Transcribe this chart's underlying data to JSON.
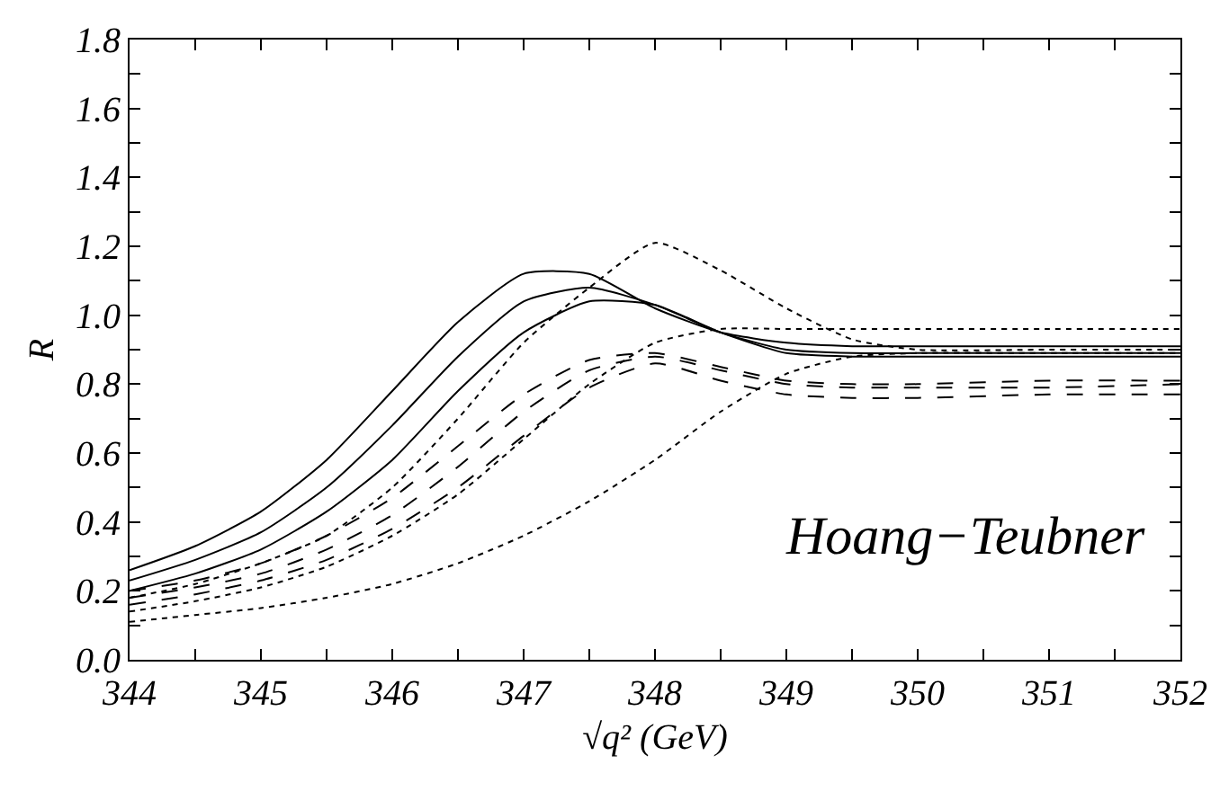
{
  "chart_data": {
    "type": "line",
    "xlabel": "√q² (GeV)",
    "ylabel": "R",
    "annotations": [
      "Hoang−Teubner"
    ],
    "x": [
      344,
      344.5,
      345,
      345.5,
      346,
      346.5,
      347,
      347.5,
      348,
      348.5,
      349,
      349.5,
      350,
      351,
      352
    ],
    "series": [
      {
        "color": "#000000",
        "line_style": "solid",
        "values": [
          0.26,
          0.33,
          0.43,
          0.58,
          0.78,
          0.98,
          1.12,
          1.12,
          1.02,
          0.95,
          0.92,
          0.91,
          0.91,
          0.91,
          0.91
        ]
      },
      {
        "color": "#000000",
        "line_style": "solid",
        "values": [
          0.23,
          0.29,
          0.37,
          0.5,
          0.68,
          0.88,
          1.04,
          1.08,
          1.03,
          0.95,
          0.9,
          0.89,
          0.89,
          0.89,
          0.89
        ]
      },
      {
        "color": "#000000",
        "line_style": "solid",
        "values": [
          0.2,
          0.25,
          0.32,
          0.43,
          0.58,
          0.78,
          0.95,
          1.04,
          1.03,
          0.95,
          0.89,
          0.88,
          0.88,
          0.88,
          0.88
        ]
      },
      {
        "color": "#000000",
        "line_style": "dashed",
        "values": [
          0.2,
          0.23,
          0.28,
          0.36,
          0.47,
          0.62,
          0.77,
          0.87,
          0.89,
          0.85,
          0.81,
          0.8,
          0.8,
          0.81,
          0.81
        ]
      },
      {
        "color": "#000000",
        "line_style": "dashed",
        "values": [
          0.18,
          0.21,
          0.25,
          0.32,
          0.42,
          0.56,
          0.72,
          0.84,
          0.88,
          0.84,
          0.8,
          0.79,
          0.79,
          0.79,
          0.8
        ]
      },
      {
        "color": "#000000",
        "line_style": "dashed",
        "values": [
          0.16,
          0.19,
          0.23,
          0.29,
          0.38,
          0.5,
          0.65,
          0.79,
          0.86,
          0.81,
          0.77,
          0.76,
          0.76,
          0.77,
          0.77
        ]
      },
      {
        "color": "#000000",
        "line_style": "dotted",
        "values": [
          0.18,
          0.22,
          0.28,
          0.36,
          0.5,
          0.7,
          0.92,
          1.08,
          1.21,
          1.13,
          1.02,
          0.93,
          0.9,
          0.9,
          0.9
        ]
      },
      {
        "color": "#000000",
        "line_style": "dotted",
        "values": [
          0.14,
          0.17,
          0.21,
          0.27,
          0.36,
          0.48,
          0.64,
          0.8,
          0.92,
          0.96,
          0.96,
          0.96,
          0.96,
          0.96,
          0.96
        ]
      },
      {
        "color": "#000000",
        "line_style": "dotted",
        "values": [
          0.11,
          0.13,
          0.15,
          0.18,
          0.22,
          0.28,
          0.36,
          0.46,
          0.58,
          0.72,
          0.83,
          0.88,
          0.89,
          0.89,
          0.89
        ]
      }
    ],
    "xlim": [
      344,
      352
    ],
    "ylim": [
      0,
      1.8
    ],
    "xticks": [
      344,
      {
        "value": 344.5,
        "label": null
      },
      345,
      {
        "value": 345.5,
        "label": null
      },
      346,
      {
        "value": 346.5,
        "label": null
      },
      347,
      {
        "value": 347.5,
        "label": null
      },
      348,
      {
        "value": 348.5,
        "label": null
      },
      349,
      {
        "value": 349.5,
        "label": null
      },
      350,
      {
        "value": 350.5,
        "label": null
      },
      351,
      {
        "value": 351.5,
        "label": null
      },
      352
    ],
    "yticks": [
      {
        "value": 0,
        "label": "0.0"
      },
      {
        "value": 0.1,
        "label": null
      },
      {
        "value": 0.2,
        "label": "0.2"
      },
      {
        "value": 0.3,
        "label": null
      },
      {
        "value": 0.4,
        "label": "0.4"
      },
      {
        "value": 0.5,
        "label": null
      },
      {
        "value": 0.6,
        "label": "0.6"
      },
      {
        "value": 0.7,
        "label": null
      },
      {
        "value": 0.8,
        "label": "0.8"
      },
      {
        "value": 0.9,
        "label": null
      },
      {
        "value": 1,
        "label": "1.0"
      },
      {
        "value": 1.1,
        "label": null
      },
      {
        "value": 1.2,
        "label": "1.2"
      },
      {
        "value": 1.3,
        "label": null
      },
      {
        "value": 1.4,
        "label": "1.4"
      },
      {
        "value": 1.5,
        "label": null
      },
      {
        "value": 1.6,
        "label": "1.6"
      },
      {
        "value": 1.7,
        "label": null
      },
      {
        "value": 1.8,
        "label": "1.8"
      }
    ],
    "grid": false
  }
}
